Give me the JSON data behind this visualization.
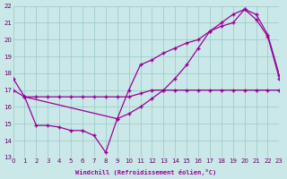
{
  "xlabel": "Windchill (Refroidissement éolien,°C)",
  "bg_color": "#cbe8e8",
  "line_color": "#990099",
  "grid_color": "#a0cccc",
  "xlim": [
    0,
    23
  ],
  "ylim": [
    13,
    22
  ],
  "yticks": [
    13,
    14,
    15,
    16,
    17,
    18,
    19,
    20,
    21,
    22
  ],
  "xticks": [
    0,
    1,
    2,
    3,
    4,
    5,
    6,
    7,
    8,
    9,
    10,
    11,
    12,
    13,
    14,
    15,
    16,
    17,
    18,
    19,
    20,
    21,
    22,
    23
  ],
  "line1_x": [
    0,
    1,
    2,
    3,
    4,
    5,
    6,
    7,
    8,
    9,
    10,
    11,
    12,
    13,
    14,
    15,
    16,
    17,
    18,
    19,
    20,
    21,
    22,
    23
  ],
  "line1_y": [
    17.7,
    16.6,
    14.9,
    14.9,
    14.8,
    14.6,
    14.6,
    14.3,
    13.3,
    15.3,
    17.0,
    18.5,
    18.8,
    19.2,
    19.5,
    19.8,
    20.0,
    20.5,
    20.8,
    21.0,
    21.8,
    21.2,
    20.2,
    17.7
  ],
  "line2_x": [
    0,
    1,
    2,
    3,
    4,
    5,
    6,
    7,
    8,
    9,
    10,
    11,
    12,
    13,
    14,
    15,
    16,
    17,
    18,
    19,
    20,
    21,
    22,
    23
  ],
  "line2_y": [
    17.0,
    16.6,
    16.6,
    16.6,
    16.6,
    16.6,
    16.6,
    16.6,
    16.6,
    16.6,
    16.6,
    16.8,
    17.0,
    17.0,
    17.0,
    17.0,
    17.0,
    17.0,
    17.0,
    17.0,
    17.0,
    17.0,
    17.0,
    17.0
  ],
  "line3_x": [
    1,
    9,
    10,
    11,
    12,
    13,
    14,
    15,
    16,
    17,
    18,
    19,
    20,
    21,
    22,
    23
  ],
  "line3_y": [
    16.6,
    15.3,
    15.6,
    16.0,
    16.5,
    17.0,
    17.7,
    18.5,
    19.5,
    20.5,
    21.0,
    21.5,
    21.8,
    21.5,
    20.3,
    17.9
  ]
}
